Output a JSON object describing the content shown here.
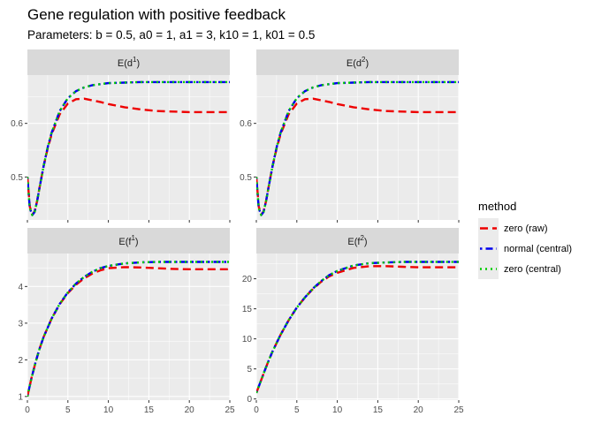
{
  "chart": {
    "title": "Gene regulation with positive feedback",
    "subtitle": "Parameters: b = 0.5, a0 = 1, a1 = 3, k10 = 1, k01 = 0.5"
  },
  "legend": {
    "title": "method",
    "position": "right",
    "entries": [
      {
        "label": "zero (raw)",
        "color": "#ee0000",
        "dash": "dashed"
      },
      {
        "label": "normal (central)",
        "color": "#0000ee",
        "dash": "dotdash"
      },
      {
        "label": "zero (central)",
        "color": "#00cd00",
        "dash": "dotted"
      }
    ]
  },
  "chart_data": [
    {
      "type": "line",
      "panel": {
        "prefix": "E(",
        "var": "d",
        "sup": "1",
        "suffix": ")"
      },
      "xlim": [
        0,
        25
      ],
      "ylim": [
        0.42,
        0.69
      ],
      "xticks": [
        "0",
        "5",
        "10",
        "15",
        "20",
        "25"
      ],
      "yticks": [
        "0.5",
        "0.6"
      ],
      "grid": true,
      "series": [
        {
          "name": "zero (raw)",
          "x": [
            0,
            0.3,
            0.6,
            0.9,
            1.2,
            1.5,
            2,
            2.5,
            3,
            4,
            5,
            6,
            7,
            8,
            9,
            10,
            12,
            14,
            16,
            18,
            20,
            22,
            25
          ],
          "y": [
            0.5,
            0.445,
            0.43,
            0.436,
            0.455,
            0.48,
            0.52,
            0.553,
            0.58,
            0.617,
            0.637,
            0.645,
            0.646,
            0.643,
            0.64,
            0.636,
            0.63,
            0.626,
            0.623,
            0.622,
            0.621,
            0.621,
            0.621
          ]
        },
        {
          "name": "normal (central)",
          "x": [
            0,
            0.3,
            0.6,
            0.9,
            1.2,
            1.5,
            2,
            2.5,
            3,
            4,
            5,
            6,
            7,
            8,
            9,
            10,
            12,
            14,
            16,
            18,
            20,
            22,
            25
          ],
          "y": [
            0.5,
            0.442,
            0.429,
            0.435,
            0.455,
            0.48,
            0.52,
            0.555,
            0.583,
            0.623,
            0.647,
            0.66,
            0.667,
            0.671,
            0.673,
            0.675,
            0.676,
            0.677,
            0.677,
            0.677,
            0.677,
            0.677,
            0.677
          ]
        },
        {
          "name": "zero (central)",
          "x": [
            0,
            0.3,
            0.6,
            0.9,
            1.2,
            1.5,
            2,
            2.5,
            3,
            4,
            5,
            6,
            7,
            8,
            9,
            10,
            12,
            14,
            16,
            18,
            20,
            22,
            25
          ],
          "y": [
            0.5,
            0.442,
            0.429,
            0.435,
            0.455,
            0.48,
            0.52,
            0.555,
            0.583,
            0.623,
            0.647,
            0.66,
            0.667,
            0.671,
            0.673,
            0.675,
            0.676,
            0.677,
            0.677,
            0.677,
            0.677,
            0.677,
            0.677
          ]
        }
      ]
    },
    {
      "type": "line",
      "panel": {
        "prefix": "E(",
        "var": "d",
        "sup": "2",
        "suffix": ")"
      },
      "xlim": [
        0,
        25
      ],
      "ylim": [
        0.42,
        0.69
      ],
      "xticks": [
        "0",
        "5",
        "10",
        "15",
        "20",
        "25"
      ],
      "yticks": [
        "0.5",
        "0.6"
      ],
      "grid": true,
      "series": [
        {
          "name": "zero (raw)",
          "x": [
            0,
            0.3,
            0.6,
            0.9,
            1.2,
            1.5,
            2,
            2.5,
            3,
            4,
            5,
            6,
            7,
            8,
            9,
            10,
            12,
            14,
            16,
            18,
            20,
            22,
            25
          ],
          "y": [
            0.5,
            0.445,
            0.43,
            0.436,
            0.455,
            0.48,
            0.52,
            0.553,
            0.58,
            0.617,
            0.637,
            0.645,
            0.646,
            0.643,
            0.64,
            0.636,
            0.63,
            0.626,
            0.623,
            0.622,
            0.621,
            0.621,
            0.621
          ]
        },
        {
          "name": "normal (central)",
          "x": [
            0,
            0.3,
            0.6,
            0.9,
            1.2,
            1.5,
            2,
            2.5,
            3,
            4,
            5,
            6,
            7,
            8,
            9,
            10,
            12,
            14,
            16,
            18,
            20,
            22,
            25
          ],
          "y": [
            0.5,
            0.442,
            0.429,
            0.435,
            0.455,
            0.48,
            0.52,
            0.555,
            0.583,
            0.623,
            0.647,
            0.66,
            0.667,
            0.671,
            0.673,
            0.675,
            0.676,
            0.677,
            0.677,
            0.677,
            0.677,
            0.677,
            0.677
          ]
        },
        {
          "name": "zero (central)",
          "x": [
            0,
            0.3,
            0.6,
            0.9,
            1.2,
            1.5,
            2,
            2.5,
            3,
            4,
            5,
            6,
            7,
            8,
            9,
            10,
            12,
            14,
            16,
            18,
            20,
            22,
            25
          ],
          "y": [
            0.5,
            0.442,
            0.429,
            0.435,
            0.455,
            0.48,
            0.52,
            0.555,
            0.583,
            0.623,
            0.647,
            0.66,
            0.667,
            0.671,
            0.673,
            0.675,
            0.676,
            0.677,
            0.677,
            0.677,
            0.677,
            0.677,
            0.677
          ]
        }
      ]
    },
    {
      "type": "line",
      "panel": {
        "prefix": "E(",
        "var": "f",
        "sup": "1",
        "suffix": ")"
      },
      "xlim": [
        0,
        25
      ],
      "ylim": [
        0.9,
        4.9
      ],
      "xticks": [
        "0",
        "5",
        "10",
        "15",
        "20",
        "25"
      ],
      "yticks": [
        "1",
        "2",
        "3",
        "4"
      ],
      "grid": true,
      "series": [
        {
          "name": "zero (raw)",
          "x": [
            0,
            0.5,
            1,
            1.5,
            2,
            3,
            4,
            5,
            6,
            7,
            8,
            9,
            10,
            12,
            14,
            16,
            18,
            20,
            22,
            25
          ],
          "y": [
            1.0,
            1.5,
            1.93,
            2.3,
            2.62,
            3.13,
            3.52,
            3.82,
            4.05,
            4.22,
            4.35,
            4.44,
            4.5,
            4.53,
            4.52,
            4.5,
            4.48,
            4.47,
            4.47,
            4.47
          ]
        },
        {
          "name": "normal (central)",
          "x": [
            0,
            0.5,
            1,
            1.5,
            2,
            3,
            4,
            5,
            6,
            7,
            8,
            9,
            10,
            12,
            14,
            16,
            18,
            20,
            22,
            25
          ],
          "y": [
            1.0,
            1.5,
            1.93,
            2.3,
            2.62,
            3.13,
            3.53,
            3.84,
            4.08,
            4.26,
            4.4,
            4.5,
            4.56,
            4.63,
            4.66,
            4.67,
            4.67,
            4.67,
            4.67,
            4.67
          ]
        },
        {
          "name": "zero (central)",
          "x": [
            0,
            0.5,
            1,
            1.5,
            2,
            3,
            4,
            5,
            6,
            7,
            8,
            9,
            10,
            12,
            14,
            16,
            18,
            20,
            22,
            25
          ],
          "y": [
            1.0,
            1.5,
            1.93,
            2.3,
            2.62,
            3.13,
            3.53,
            3.84,
            4.08,
            4.26,
            4.4,
            4.5,
            4.56,
            4.63,
            4.66,
            4.67,
            4.67,
            4.67,
            4.67,
            4.67
          ]
        }
      ]
    },
    {
      "type": "line",
      "panel": {
        "prefix": "E(",
        "var": "f",
        "sup": "2",
        "suffix": ")"
      },
      "xlim": [
        0,
        25
      ],
      "ylim": [
        -0.2,
        24.2
      ],
      "xticks": [
        "0",
        "5",
        "10",
        "15",
        "20",
        "25"
      ],
      "yticks": [
        "0",
        "5",
        "10",
        "15",
        "20"
      ],
      "grid": true,
      "series": [
        {
          "name": "zero (raw)",
          "x": [
            0,
            0.5,
            1,
            1.5,
            2,
            3,
            4,
            5,
            6,
            7,
            8,
            9,
            10,
            12,
            14,
            16,
            18,
            20,
            22,
            25
          ],
          "y": [
            1.0,
            2.8,
            4.6,
            6.3,
            7.9,
            10.7,
            13.1,
            15.2,
            16.9,
            18.3,
            19.5,
            20.4,
            21.0,
            21.8,
            22.1,
            22.1,
            22.0,
            21.9,
            21.9,
            21.9
          ]
        },
        {
          "name": "normal (central)",
          "x": [
            0,
            0.5,
            1,
            1.5,
            2,
            3,
            4,
            5,
            6,
            7,
            8,
            9,
            10,
            12,
            14,
            16,
            18,
            20,
            22,
            25
          ],
          "y": [
            1.0,
            2.8,
            4.6,
            6.3,
            7.9,
            10.7,
            13.1,
            15.2,
            16.9,
            18.4,
            19.6,
            20.6,
            21.3,
            22.2,
            22.6,
            22.7,
            22.8,
            22.8,
            22.8,
            22.8
          ]
        },
        {
          "name": "zero (central)",
          "x": [
            0,
            0.5,
            1,
            1.5,
            2,
            3,
            4,
            5,
            6,
            7,
            8,
            9,
            10,
            12,
            14,
            16,
            18,
            20,
            22,
            25
          ],
          "y": [
            1.0,
            2.8,
            4.6,
            6.3,
            7.9,
            10.7,
            13.1,
            15.2,
            16.9,
            18.4,
            19.6,
            20.6,
            21.3,
            22.2,
            22.6,
            22.7,
            22.8,
            22.8,
            22.8,
            22.8
          ]
        }
      ]
    }
  ]
}
